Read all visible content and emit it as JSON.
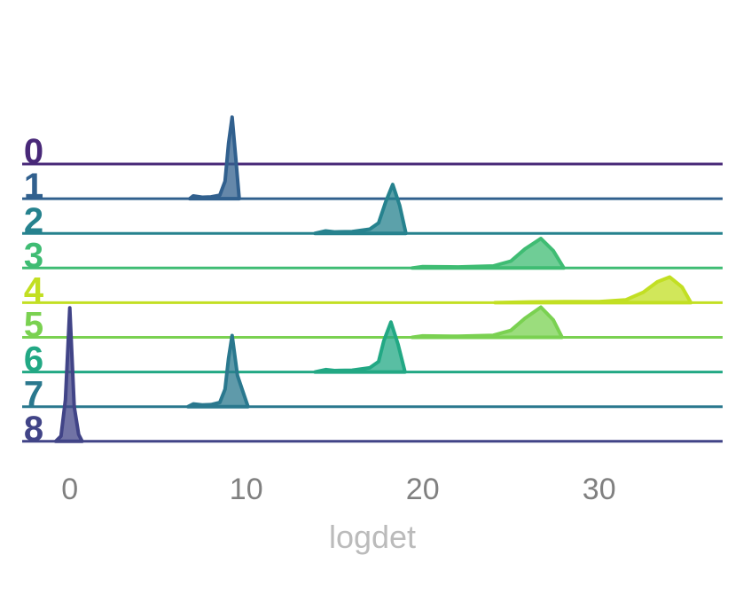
{
  "chart_data": {
    "type": "ridgeline",
    "xlabel": "logdet",
    "xlim": [
      -2.7,
      37
    ],
    "xticks": [
      0,
      10,
      20,
      30
    ],
    "series": [
      {
        "name": "0",
        "color": "#482878",
        "x": [],
        "values": []
      },
      {
        "name": "1",
        "color": "#31608e",
        "x": [
          6.8,
          7.0,
          7.5,
          8.0,
          8.5,
          8.8,
          9.0,
          9.2,
          9.4,
          9.6
        ],
        "values": [
          0,
          0.08,
          0.04,
          0.05,
          0.1,
          0.5,
          1.6,
          2.35,
          1.2,
          0
        ]
      },
      {
        "name": "2",
        "color": "#26828e",
        "x": [
          13.9,
          14.5,
          15,
          16,
          17,
          17.5,
          17.9,
          18.3,
          18.7,
          19.05
        ],
        "values": [
          0,
          0.07,
          0.04,
          0.05,
          0.12,
          0.3,
          0.9,
          1.41,
          0.8,
          0
        ]
      },
      {
        "name": "3",
        "color": "#3fbc73",
        "x": [
          19.4,
          20,
          22,
          24,
          25,
          25.8,
          26.7,
          27.4,
          28
        ],
        "values": [
          0,
          0.04,
          0.03,
          0.06,
          0.2,
          0.55,
          0.85,
          0.5,
          0
        ]
      },
      {
        "name": "4",
        "color": "#c2df23",
        "x": [
          24.1,
          26,
          28,
          30,
          31.5,
          32.5,
          33.3,
          34,
          34.7,
          35.2
        ],
        "values": [
          0,
          0.02,
          0.03,
          0.03,
          0.08,
          0.3,
          0.6,
          0.74,
          0.45,
          0
        ]
      },
      {
        "name": "5",
        "color": "#7ad151",
        "x": [
          19.4,
          20,
          22,
          24,
          25,
          25.8,
          26.7,
          27.4,
          27.9
        ],
        "values": [
          0,
          0.04,
          0.03,
          0.06,
          0.2,
          0.55,
          0.87,
          0.5,
          0
        ]
      },
      {
        "name": "6",
        "color": "#22a884",
        "x": [
          13.9,
          14.5,
          15,
          16,
          17,
          17.5,
          17.8,
          18.2,
          18.6,
          19.0
        ],
        "values": [
          0,
          0.07,
          0.04,
          0.05,
          0.12,
          0.3,
          0.9,
          1.44,
          0.8,
          0
        ]
      },
      {
        "name": "7",
        "color": "#2a788e",
        "x": [
          6.7,
          7.0,
          7.5,
          8.0,
          8.5,
          8.8,
          9.0,
          9.2,
          9.5,
          10.1
        ],
        "values": [
          0,
          0.08,
          0.05,
          0.06,
          0.12,
          0.5,
          1.4,
          2.05,
          0.9,
          0
        ]
      },
      {
        "name": "8",
        "color": "#414487",
        "x": [
          -0.8,
          -0.5,
          -0.25,
          0,
          0.25,
          0.5,
          0.7
        ],
        "values": [
          0,
          0.15,
          1.2,
          3.85,
          1.0,
          0.2,
          0
        ]
      }
    ]
  }
}
